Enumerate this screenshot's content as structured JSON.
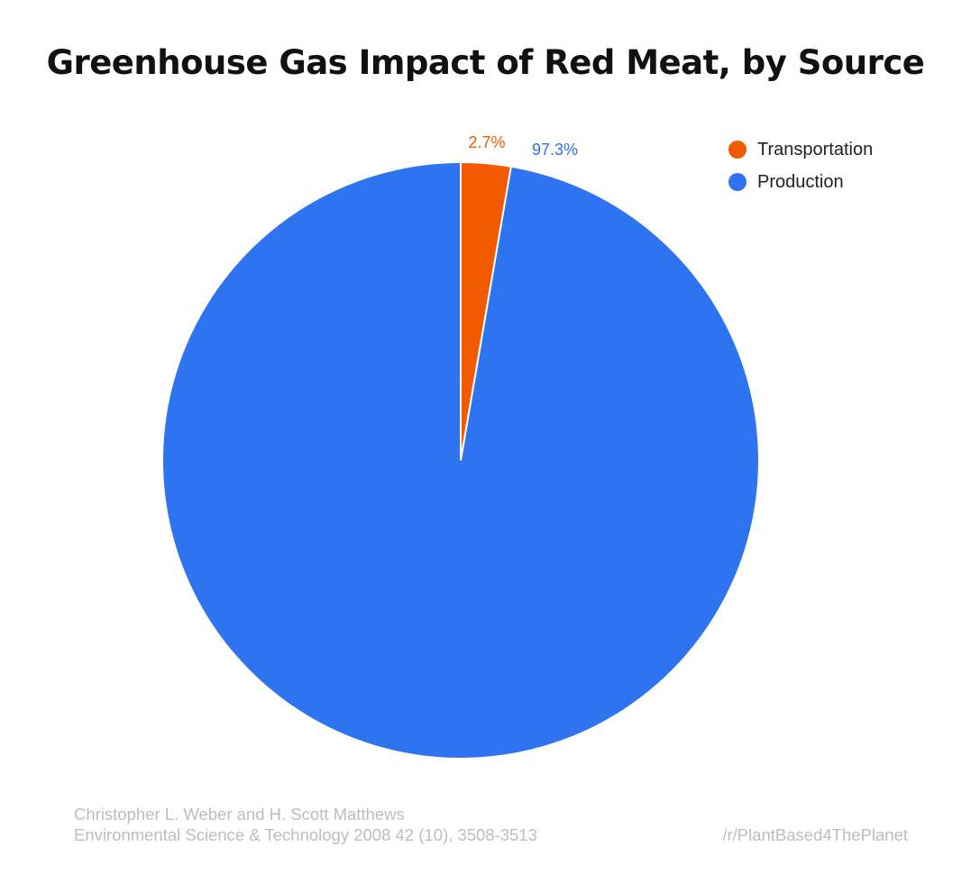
{
  "chart_data": {
    "type": "pie",
    "title": "Greenhouse Gas Impact of Red Meat, by Source",
    "slices": [
      {
        "name": "Transportation",
        "value": 2.7,
        "label": "2.7%",
        "color": "#f25a00"
      },
      {
        "name": "Production",
        "value": 97.3,
        "label": "97.3%",
        "color": "#2e73f0"
      }
    ],
    "start_angle_deg": 0,
    "legend_position": "top-right"
  },
  "footer": {
    "source_line1": "Christopher L. Weber and H. Scott Matthews",
    "source_line2": "Environmental Science & Technology 2008 42 (10), 3508-3513",
    "credit": "/r/PlantBased4ThePlanet"
  }
}
